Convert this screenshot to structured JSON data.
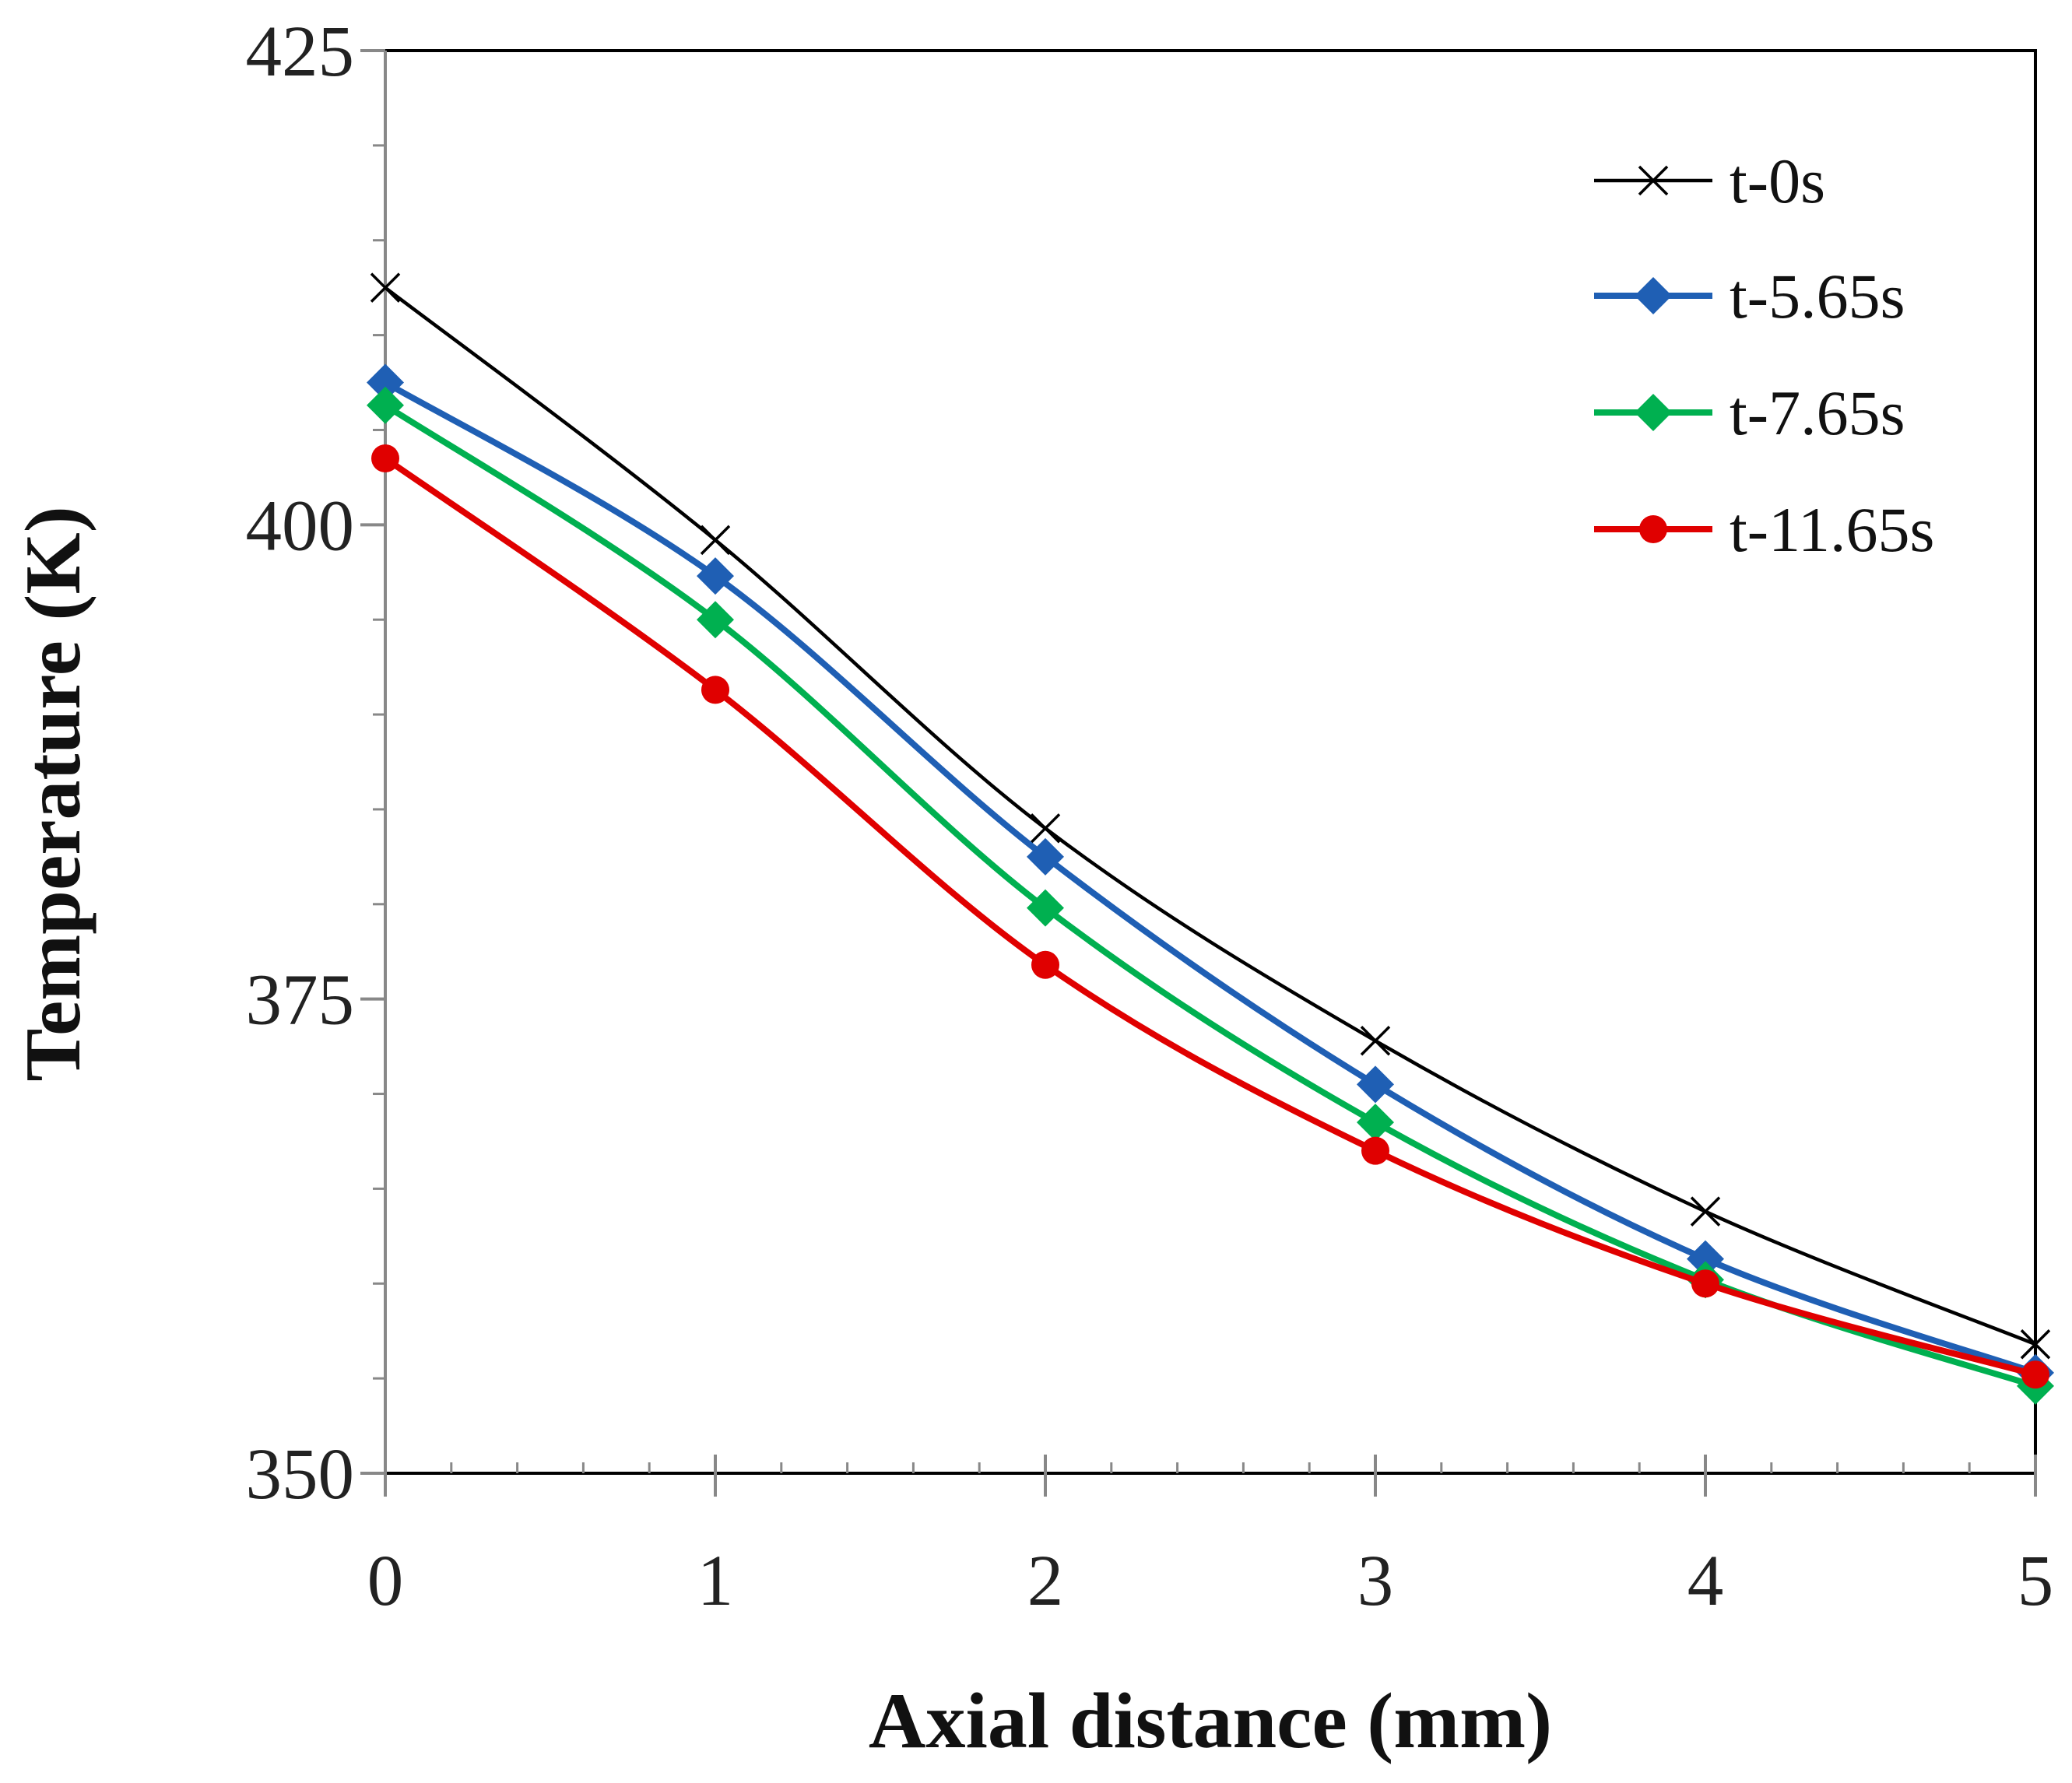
{
  "chart_data": {
    "type": "line",
    "title": "",
    "xlabel": "Axial distance (mm)",
    "ylabel": "Temperature (K)",
    "xlim": [
      0,
      5
    ],
    "ylim": [
      350,
      425
    ],
    "x_ticks": [
      0,
      1,
      2,
      3,
      4,
      5
    ],
    "y_ticks": [
      350,
      375,
      400,
      425
    ],
    "grid": false,
    "legend_position": "top-right",
    "x": [
      0,
      1,
      2,
      3,
      4,
      5
    ],
    "series": [
      {
        "name": "t-0s",
        "color": "#000000",
        "marker": "x",
        "values": [
          412.5,
          399.2,
          384.0,
          372.8,
          363.8,
          356.8
        ]
      },
      {
        "name": "t-5.65s",
        "color": "#1f5fb4",
        "marker": "diamond",
        "values": [
          407.5,
          397.3,
          382.5,
          370.5,
          361.3,
          355.3
        ]
      },
      {
        "name": "t-7.65s",
        "color": "#00b050",
        "marker": "diamond",
        "values": [
          406.3,
          395.0,
          379.8,
          368.5,
          360.2,
          354.6
        ]
      },
      {
        "name": "t-11.65s",
        "color": "#e00000",
        "marker": "circle",
        "values": [
          403.5,
          391.3,
          376.8,
          367.0,
          360.0,
          355.2
        ]
      }
    ]
  }
}
